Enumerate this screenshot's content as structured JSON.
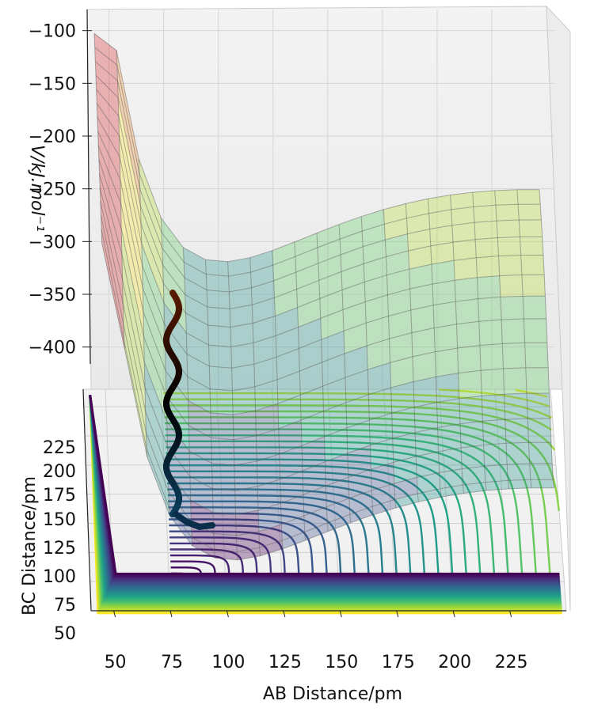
{
  "chart_data": {
    "type": "surface",
    "xlabel": "AB Distance/pm",
    "ylabel": "BC Distance/pm",
    "zlabel": "V/kJ.mol⁻¹",
    "x_ticks": [
      50,
      75,
      100,
      125,
      150,
      175,
      200,
      225
    ],
    "y_ticks": [
      50,
      75,
      100,
      125,
      150,
      175,
      200,
      225
    ],
    "z_ticks": [
      -100,
      -150,
      -200,
      -250,
      -300,
      -350,
      -400
    ],
    "xlim": [
      40,
      250
    ],
    "ylim": [
      50,
      240
    ],
    "zlim": [
      -440,
      -80
    ],
    "colormap_surface": [
      "#fde725",
      "#a0da39",
      "#4ac16d",
      "#1fa187",
      "#277f8e",
      "#365c8d",
      "#46327e",
      "#440154"
    ],
    "colormap_contour": [
      "#440154",
      "#46327e",
      "#365c8d",
      "#277f8e",
      "#1fa187",
      "#4ac16d",
      "#a0da39",
      "#fde725"
    ],
    "trajectory_color": [
      "#5a1a00",
      "#000000",
      "#0b3d5c"
    ],
    "grid": true,
    "legend": "none"
  }
}
